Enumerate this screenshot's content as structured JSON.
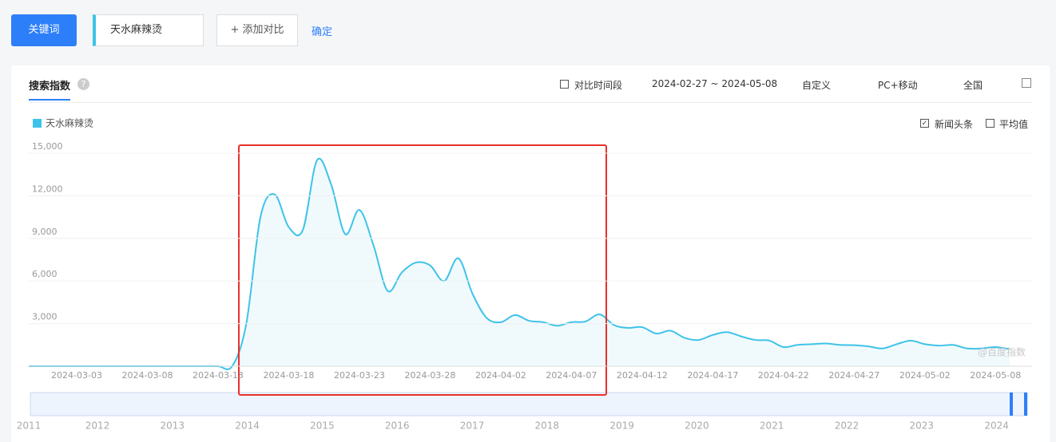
{
  "ui": {
    "keyword_button": "关键词",
    "keyword_input": "天水麻辣烫",
    "add_compare": "+ 添加对比",
    "confirm": "确定",
    "tab": "搜索指数",
    "help": "?",
    "compare_period": "对比时间段",
    "date_range": "2024-02-27 ~ 2024-05-08",
    "custom": "自定义",
    "device": "PC+移动",
    "region": "全国",
    "news": "新闻头条",
    "average": "平均值",
    "watermark": "@百度指数",
    "timeline_years": [
      "2011",
      "2012",
      "2013",
      "2014",
      "2015",
      "2016",
      "2017",
      "2018",
      "2019",
      "2020",
      "2021",
      "2022",
      "2023",
      "2024"
    ]
  },
  "chart_data": {
    "type": "line",
    "categories": [
      null,
      null,
      null,
      null,
      null,
      "2024-03-03",
      null,
      null,
      null,
      null,
      "2024-03-08",
      null,
      null,
      null,
      null,
      "2024-03-13",
      null,
      null,
      null,
      null,
      "2024-03-18",
      null,
      null,
      null,
      null,
      "2024-03-23",
      null,
      null,
      null,
      null,
      "2024-03-28",
      null,
      null,
      null,
      null,
      "2024-04-02",
      null,
      null,
      null,
      null,
      "2024-04-07",
      null,
      null,
      null,
      null,
      "2024-04-12",
      null,
      null,
      null,
      null,
      "2024-04-17",
      null,
      null,
      null,
      null,
      "2024-04-22",
      null,
      null,
      null,
      null,
      "2024-04-27",
      null,
      null,
      null,
      null,
      "2024-05-02",
      null,
      null,
      null,
      null,
      "2024-05-08",
      null
    ],
    "series": [
      {
        "name": "天水麻辣烫",
        "color": "#3ec3e8",
        "values": [
          0,
          0,
          0,
          0,
          0,
          0,
          0,
          0,
          0,
          0,
          0,
          0,
          0,
          0,
          0,
          0,
          0,
          3000,
          10500,
          12100,
          9800,
          9600,
          14500,
          12800,
          9300,
          11000,
          8500,
          5300,
          6600,
          7300,
          7100,
          6000,
          7600,
          5100,
          3400,
          3100,
          3600,
          3200,
          3100,
          2850,
          3100,
          3150,
          3650,
          2900,
          2700,
          2750,
          2300,
          2500,
          2000,
          1850,
          2200,
          2400,
          2100,
          1850,
          1800,
          1350,
          1500,
          1550,
          1600,
          1500,
          1480,
          1400,
          1250,
          1550,
          1800,
          1550,
          1450,
          1500,
          1250,
          1250,
          1350,
          1200
        ]
      }
    ],
    "ylim": [
      0,
      15000
    ],
    "yticks": [
      {
        "value": 3000,
        "label": "3,000"
      },
      {
        "value": 6000,
        "label": "6,000"
      },
      {
        "value": 9000,
        "label": "9,000"
      },
      {
        "value": 12000,
        "label": "12,000"
      },
      {
        "value": 15000,
        "label": "15,000"
      }
    ],
    "grid": true
  }
}
